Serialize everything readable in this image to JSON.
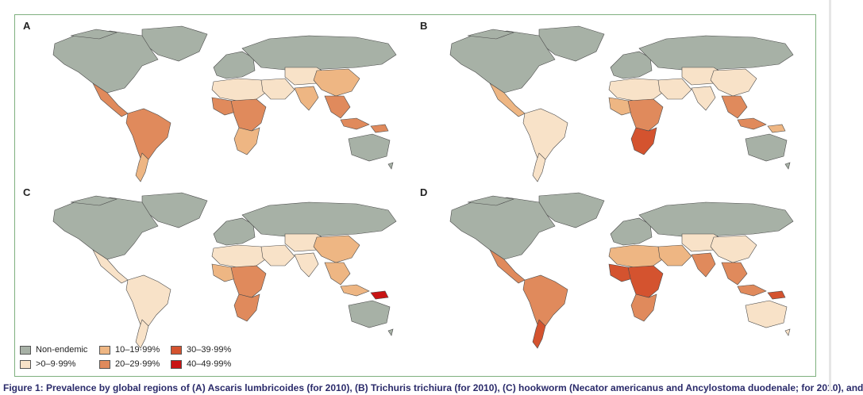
{
  "colors": {
    "non_endemic": "#a7b1a6",
    "c0_9": "#f8e2c8",
    "c10_19": "#eeb683",
    "c20_29": "#e08a5c",
    "c30_39": "#d4532f",
    "c40_49": "#c81414"
  },
  "panels": [
    {
      "letter": "A",
      "map_colors": {
        "na": "non_endemic",
        "ca": "c20_29",
        "sa": "c20_29",
        "sa_south": "c10_19",
        "gl": "non_endemic",
        "eu": "non_endemic",
        "ru": "non_endemic",
        "na_af": "c0_9",
        "wa_af": "c20_29",
        "ca_af": "c20_29",
        "sa_af": "c10_19",
        "me": "c0_9",
        "ca_as": "c0_9",
        "ch": "c10_19",
        "in": "c10_19",
        "sea": "c20_29",
        "png": "c20_29",
        "au": "non_endemic"
      }
    },
    {
      "letter": "B",
      "map_colors": {
        "na": "non_endemic",
        "ca": "c10_19",
        "sa": "c0_9",
        "sa_south": "c0_9",
        "gl": "non_endemic",
        "eu": "non_endemic",
        "ru": "non_endemic",
        "na_af": "c0_9",
        "wa_af": "c10_19",
        "ca_af": "c20_29",
        "sa_af": "c30_39",
        "me": "c0_9",
        "ca_as": "c0_9",
        "ch": "c0_9",
        "in": "c0_9",
        "sea": "c20_29",
        "png": "c10_19",
        "au": "non_endemic"
      }
    },
    {
      "letter": "C",
      "map_colors": {
        "na": "non_endemic",
        "ca": "c0_9",
        "sa": "c0_9",
        "sa_south": "c0_9",
        "gl": "non_endemic",
        "eu": "non_endemic",
        "ru": "non_endemic",
        "na_af": "c0_9",
        "wa_af": "c10_19",
        "ca_af": "c20_29",
        "sa_af": "c20_29",
        "me": "c0_9",
        "ca_as": "c0_9",
        "ch": "c10_19",
        "in": "c0_9",
        "sea": "c10_19",
        "png": "c40_49",
        "au": "non_endemic"
      }
    },
    {
      "letter": "D",
      "map_colors": {
        "na": "non_endemic",
        "ca": "c20_29",
        "sa": "c20_29",
        "sa_south": "c30_39",
        "gl": "non_endemic",
        "eu": "non_endemic",
        "ru": "non_endemic",
        "na_af": "c10_19",
        "wa_af": "c30_39",
        "ca_af": "c30_39",
        "sa_af": "c20_29",
        "me": "c10_19",
        "ca_as": "c0_9",
        "ch": "c0_9",
        "in": "c20_29",
        "sea": "c20_29",
        "png": "c30_39",
        "au": "c0_9"
      }
    }
  ],
  "legend": [
    {
      "label": "Non-endemic",
      "color_key": "non_endemic"
    },
    {
      "label": ">0–9·99%",
      "color_key": "c0_9"
    },
    {
      "label": "10–19·99%",
      "color_key": "c10_19"
    },
    {
      "label": "20–29·99%",
      "color_key": "c20_29"
    },
    {
      "label": "30–39·99%",
      "color_key": "c30_39"
    },
    {
      "label": "40–49·99%",
      "color_key": "c40_49"
    }
  ],
  "caption": "Figure 1: Prevalence by global regions of (A) Ascaris lumbricoides (for 2010), (B) Trichuris trichiura (for 2010), (C) hookworm (Necator americanus and Ancylostoma duodenale; for 2010), and"
}
